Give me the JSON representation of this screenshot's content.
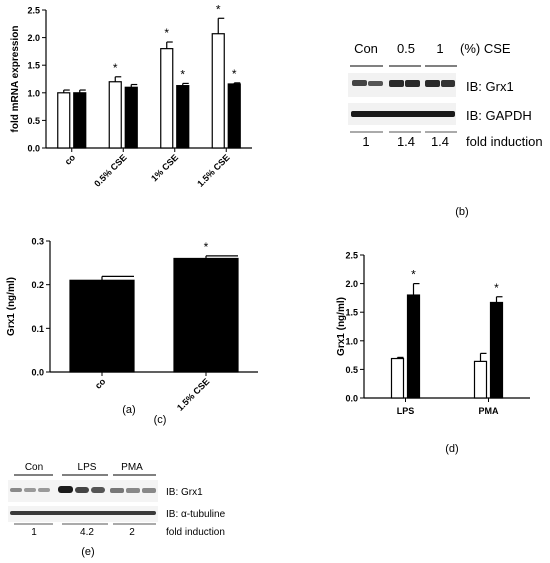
{
  "chart_data": [
    {
      "panel": "(a)",
      "type": "bar",
      "ylabel": "fold mRNA expression",
      "ylim": [
        0,
        2.5
      ],
      "yticks": [
        "0.0",
        "0.5",
        "1.0",
        "1.5",
        "2.0",
        "2.5"
      ],
      "categories": [
        "co",
        "0.5% CSE",
        "1% CSE",
        "1.5% CSE"
      ],
      "series": [
        {
          "fill": "#ffffff",
          "values": [
            1.0,
            1.2,
            1.8,
            2.07
          ],
          "errors": [
            0.05,
            0.09,
            0.12,
            0.28
          ]
        },
        {
          "fill": "#000000",
          "values": [
            1.0,
            1.1,
            1.13,
            1.16
          ],
          "errors": [
            0.05,
            0.05,
            0.04,
            0.02
          ]
        }
      ],
      "stars": [
        "",
        "*",
        "*",
        "*"
      ],
      "stars_series2": [
        "",
        "",
        "*",
        "*"
      ]
    },
    {
      "panel": "(c)",
      "type": "bar",
      "ylabel": "Grx1 (ng/ml)",
      "ylim": [
        0,
        0.3
      ],
      "yticks": [
        "0.0",
        "0.1",
        "0.2",
        "0.3"
      ],
      "categories": [
        "co",
        "1.5% CSE"
      ],
      "series": [
        {
          "fill": "#000000",
          "values": [
            0.21,
            0.26
          ],
          "errors": [
            0.009,
            0.006
          ]
        }
      ],
      "stars": [
        "",
        "*"
      ]
    },
    {
      "panel": "(d)",
      "type": "bar",
      "ylabel": "Grx1 (ng/ml)",
      "ylim": [
        0,
        2.5
      ],
      "yticks": [
        "0.0",
        "0.5",
        "1.0",
        "1.5",
        "2.0",
        "2.5"
      ],
      "categories": [
        "LPS",
        "PMA"
      ],
      "series": [
        {
          "fill": "#ffffff",
          "values": [
            0.69,
            0.64
          ],
          "errors": [
            0.02,
            0.14
          ]
        },
        {
          "fill": "#000000",
          "values": [
            1.8,
            1.67
          ],
          "errors": [
            0.2,
            0.1
          ]
        }
      ],
      "stars_series2": [
        "*",
        "*"
      ]
    }
  ],
  "blot_b": {
    "panel": "(b)",
    "lanes": [
      "Con",
      "0.5",
      "1"
    ],
    "lane_unit": "(%) CSE",
    "rows": [
      "IB: Grx1",
      "IB: GAPDH"
    ],
    "fold": [
      "1",
      "1.4",
      "1.4"
    ],
    "fold_label": "fold induction"
  },
  "blot_e": {
    "panel": "(e)",
    "groups": [
      "Con",
      "LPS",
      "PMA"
    ],
    "rows": [
      "IB: Grx1",
      "IB: α-tubuline"
    ],
    "fold": [
      "1",
      "4.2",
      "2"
    ],
    "fold_label": "fold induction"
  }
}
